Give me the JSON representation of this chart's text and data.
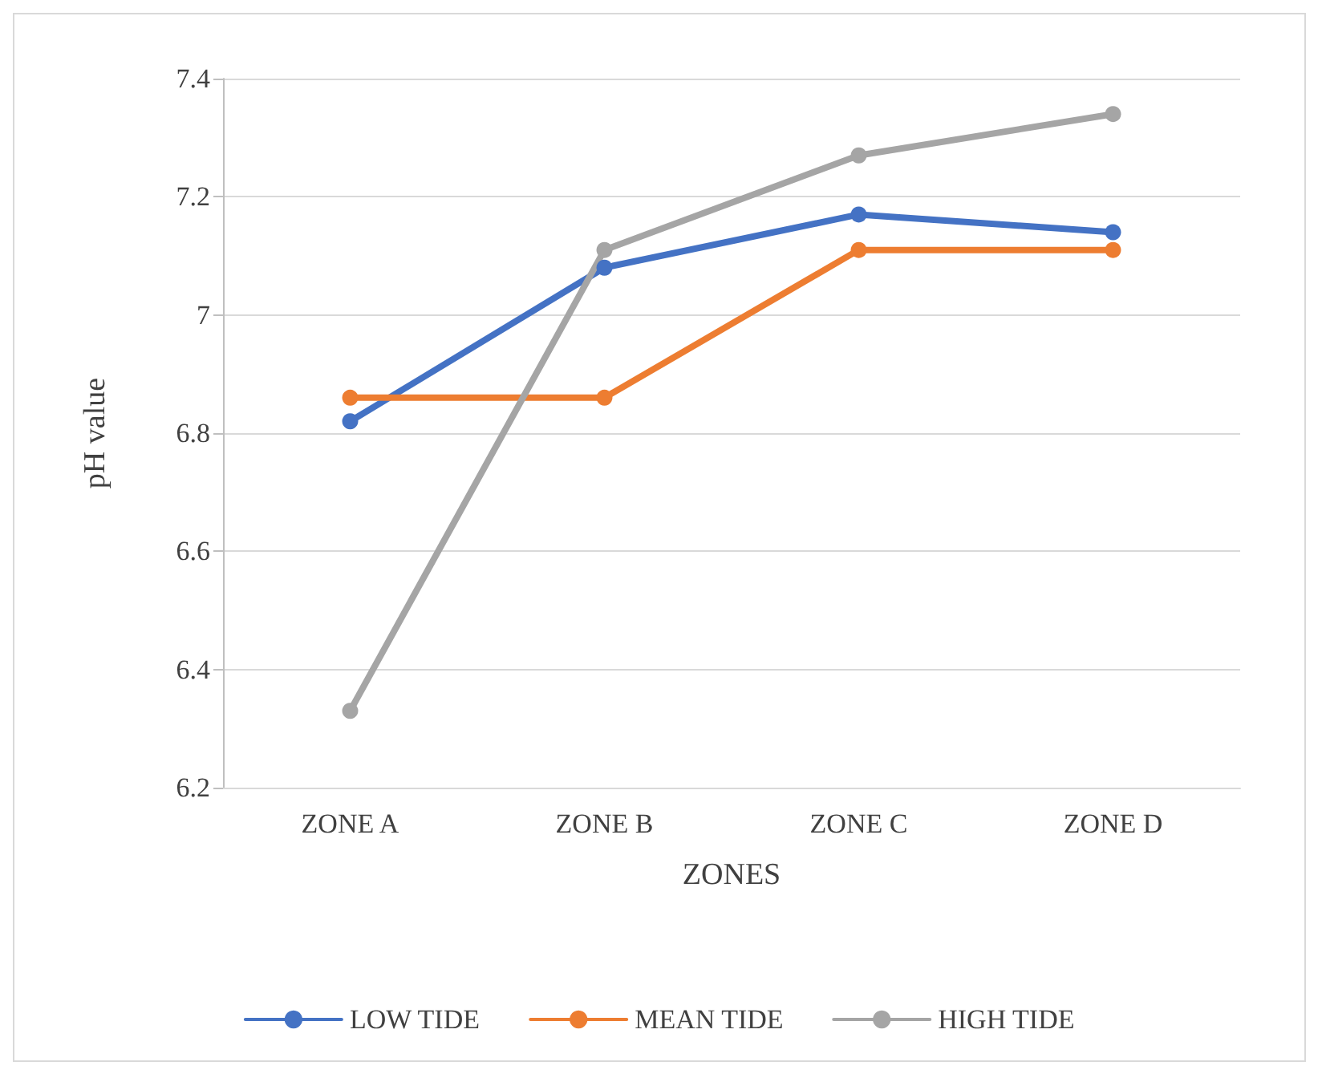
{
  "chart_data": {
    "type": "line",
    "xlabel": "ZONES",
    "ylabel": "pH value",
    "categories": [
      "ZONE A",
      "ZONE B",
      "ZONE C",
      "ZONE D"
    ],
    "series": [
      {
        "name": "LOW TIDE",
        "color": "#4472c4",
        "values": [
          6.82,
          7.08,
          7.17,
          7.14
        ]
      },
      {
        "name": "MEAN TIDE",
        "color": "#ed7d31",
        "values": [
          6.86,
          6.86,
          7.11,
          7.11
        ]
      },
      {
        "name": "HIGH TIDE",
        "color": "#a5a5a5",
        "values": [
          6.33,
          7.11,
          7.27,
          7.34
        ]
      }
    ],
    "ylim": [
      6.2,
      7.4
    ],
    "yticks": [
      6.2,
      6.4,
      6.6,
      6.8,
      7,
      7.2,
      7.4
    ],
    "grid": "y",
    "legend": "bottom",
    "marker": "circle",
    "line_style": "solid"
  }
}
